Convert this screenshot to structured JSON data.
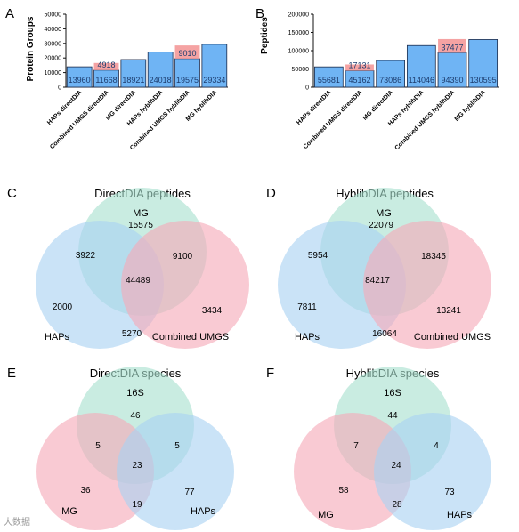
{
  "chart_data": [
    {
      "panel": "A",
      "type": "bar",
      "ylabel": "Protein Groups",
      "ylim": [
        0,
        50000
      ],
      "yticks": [
        "0",
        "10000",
        "20000",
        "30000",
        "40000",
        "50000"
      ],
      "categories": [
        "HAPs directDIA",
        "Combined UMGS directDIA",
        "MG directDIA",
        "HAPs hyblibDIA",
        "Combined UMGS hyblibDIA",
        "MG hyblibDIA"
      ],
      "values": [
        13960,
        11668,
        18921,
        24018,
        19575,
        29334
      ],
      "stack_values": [
        null,
        4918,
        null,
        null,
        9010,
        null
      ],
      "value_labels": [
        "13960",
        "11668",
        "18921",
        "24018",
        "19575",
        "29334"
      ],
      "stack_labels": [
        "",
        "4918",
        "",
        "",
        "9010",
        ""
      ],
      "colors": {
        "base": "#6fb4f4",
        "stack": "#f5a3a3",
        "edge": "#1b2a4a"
      }
    },
    {
      "panel": "B",
      "type": "bar",
      "ylabel": "Peptides",
      "ylim": [
        0,
        200000
      ],
      "yticks": [
        "0",
        "50000",
        "100000",
        "150000",
        "200000"
      ],
      "categories": [
        "HAPs directDIA",
        "Combined UMGS directDIA",
        "MG directDIA",
        "HAPs hyblibDIA",
        "Combined UMGS hyblibDIA",
        "MG hyblibDIA"
      ],
      "values": [
        55681,
        45162,
        73086,
        114046,
        94390,
        130595
      ],
      "stack_values": [
        null,
        17131,
        null,
        null,
        37477,
        null
      ],
      "value_labels": [
        "55681",
        "45162",
        "73086",
        "114046",
        "94390",
        "130595"
      ],
      "stack_labels": [
        "",
        "17131",
        "",
        "",
        "37477",
        ""
      ],
      "colors": {
        "base": "#6fb4f4",
        "stack": "#f5a3a3",
        "edge": "#1b2a4a"
      }
    },
    {
      "panel": "C",
      "type": "venn",
      "title": "DirectDIA peptides",
      "sets": [
        "MG",
        "HAPs",
        "Combined UMGS"
      ],
      "regions": {
        "only_top": "15575",
        "top_left": "3922",
        "top_right": "9100",
        "center": "44489",
        "only_left": "2000",
        "only_right": "3434",
        "left_right": "5270"
      },
      "colors": {
        "top": "#a8e0cf",
        "left": "#a9d2f2",
        "right": "#f5a9b8"
      }
    },
    {
      "panel": "D",
      "type": "venn",
      "title": "HyblibDIA peptides",
      "sets": [
        "MG",
        "HAPs",
        "Combined UMGS"
      ],
      "regions": {
        "only_top": "22079",
        "top_left": "5954",
        "top_right": "18345",
        "center": "84217",
        "only_left": "7811",
        "only_right": "13241",
        "left_right": "16064"
      },
      "colors": {
        "top": "#a8e0cf",
        "left": "#a9d2f2",
        "right": "#f5a9b8"
      }
    },
    {
      "panel": "E",
      "type": "venn",
      "title": "DirectDIA species",
      "sets": [
        "16S",
        "MG",
        "HAPs"
      ],
      "regions": {
        "only_top": "46",
        "top_left": "5",
        "top_right": "5",
        "center": "23",
        "only_left": "36",
        "only_right": "77",
        "left_right": "19"
      },
      "colors": {
        "top": "#a8e0cf",
        "left": "#f5a9b8",
        "right": "#a9d2f2"
      }
    },
    {
      "panel": "F",
      "type": "venn",
      "title": "HyblibDIA species",
      "sets": [
        "16S",
        "MG",
        "HAPs"
      ],
      "regions": {
        "only_top": "44",
        "top_left": "7",
        "top_right": "4",
        "center": "24",
        "only_left": "58",
        "only_right": "73",
        "left_right": "28"
      },
      "colors": {
        "top": "#a8e0cf",
        "left": "#f5a9b8",
        "right": "#a9d2f2"
      }
    }
  ],
  "watermark": "大数据"
}
